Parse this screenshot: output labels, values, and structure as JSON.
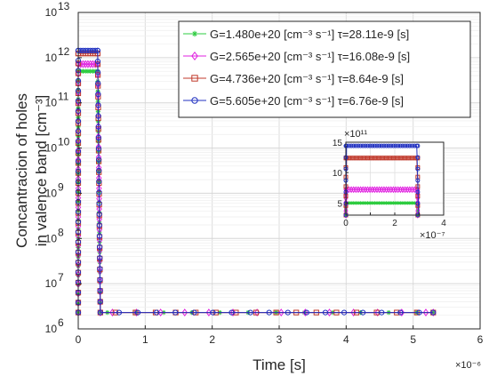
{
  "chart_data": [
    {
      "type": "line",
      "xlabel": "Time [s]",
      "ylabel_line1": "Concantracion of holes",
      "ylabel_line2": "in valence band [cm⁻³]",
      "x_multiplier": "×10⁻⁶",
      "y_scale": "log",
      "xlim": [
        0,
        6e-06
      ],
      "ylim": [
        1000000.0,
        10000000000000.0
      ],
      "x_ticks": [
        0,
        1e-06,
        2e-06,
        3e-06,
        4e-06,
        5e-06,
        6e-06
      ],
      "x_tick_labels": [
        "0",
        "1",
        "2",
        "3",
        "4",
        "5",
        "6"
      ],
      "y_ticks": [
        1000000.0,
        10000000.0,
        100000000.0,
        1000000000.0,
        10000000000.0,
        100000000000.0,
        1000000000000.0,
        10000000000000.0
      ],
      "y_tick_base": "10",
      "y_tick_exponents": [
        "6",
        "7",
        "8",
        "9",
        "10",
        "11",
        "12",
        "13"
      ],
      "grid": true,
      "legend_position": "top-right",
      "series": [
        {
          "name": "G=1.480e+20 [cm⁻³ s⁻¹] τ=28.11e-9 [s]",
          "color": "#2ecc40",
          "marker": "asterisk",
          "plateau": 500000000000.0,
          "floor": 2300000.0
        },
        {
          "name": "G=2.565e+20 [cm⁻³ s⁻¹] τ=16.08e-9 [s]",
          "color": "#e020e0",
          "marker": "diamond",
          "plateau": 720000000000.0,
          "floor": 2300000.0
        },
        {
          "name": "G=4.736e+20 [cm⁻³ s⁻¹] τ=8.64e-9 [s]",
          "color": "#c0392b",
          "marker": "square",
          "plateau": 1240000000000.0,
          "floor": 2300000.0
        },
        {
          "name": "G=5.605e+20 [cm⁻³ s⁻¹] τ=6.76e-9 [s]",
          "color": "#2030c0",
          "marker": "circle",
          "plateau": 1440000000000.0,
          "floor": 2300000.0
        }
      ],
      "pulse_start": 0,
      "pulse_end": 2.9e-07,
      "decay_end": 3.3e-07,
      "data_end": 5.3e-06
    },
    {
      "type": "line",
      "role": "inset",
      "xlim": [
        0,
        4e-07
      ],
      "ylim": [
        300000000000.0,
        1500000000000.0
      ],
      "x_ticks": [
        0,
        1e-07,
        2e-07,
        3e-07,
        4e-07
      ],
      "x_tick_labels": [
        "0",
        "",
        "2",
        "",
        "4"
      ],
      "y_ticks": [
        500000000000.0,
        1000000000000.0,
        1500000000000.0
      ],
      "y_tick_labels": [
        "5",
        "10",
        "15"
      ],
      "y_multiplier": "×10¹¹",
      "x_multiplier": "×10⁻⁷",
      "grid": true
    }
  ]
}
